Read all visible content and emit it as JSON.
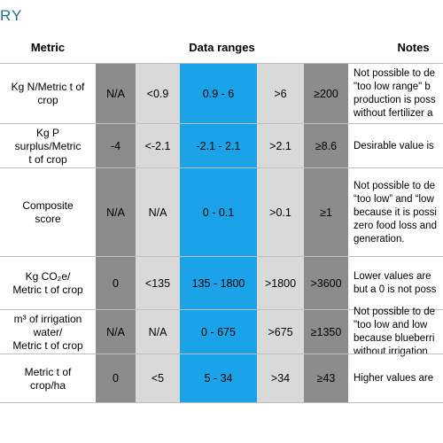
{
  "header": {
    "title": "RY",
    "columns": [
      "Metric",
      "Data ranges",
      "Notes"
    ]
  },
  "table": {
    "rows": [
      {
        "metric": [
          "Kg N/Metric t of",
          "crop"
        ],
        "ranges": [
          "N/A",
          "<0.9",
          "0.9 - 6",
          ">6",
          "≥200"
        ],
        "notes": [
          "Not possible to de",
          "\"too low range\" b",
          "production is poss",
          "without fertilizer a"
        ]
      },
      {
        "metric": [
          "Kg P",
          "surplus/Metric",
          "t of crop"
        ],
        "ranges": [
          "-4",
          "<-2.1",
          "-2.1 - 2.1",
          ">2.1",
          "≥8.6"
        ],
        "notes": [
          "Desirable value is"
        ]
      },
      {
        "metric": [
          "Composite",
          "score"
        ],
        "ranges": [
          "N/A",
          "N/A",
          "0 - 0.1",
          ">0.1",
          "≥1"
        ],
        "notes": [
          "Not possible to de",
          "“too low” and “low",
          "because it is possi",
          "zero food loss and",
          "generation."
        ]
      },
      {
        "metric": [
          "Kg CO₂e/",
          "Metric t of crop"
        ],
        "ranges": [
          "0",
          "<135",
          "135 - 1800",
          ">1800",
          ">3600"
        ],
        "notes": [
          "Lower values are",
          "but a 0 is not poss"
        ]
      },
      {
        "metric": [
          "m³ of irrigation",
          "water/",
          "Metric t of crop"
        ],
        "ranges": [
          "N/A",
          "N/A",
          "0 - 675",
          ">675",
          "≥1350"
        ],
        "notes": [
          "Not possible to de",
          "\"too low and low",
          "because blueberri",
          "without irrigation"
        ]
      },
      {
        "metric": [
          "Metric t of",
          "crop/ha"
        ],
        "ranges": [
          "0",
          "<5",
          "5 - 34",
          ">34",
          "≥43"
        ],
        "notes": [
          "Higher values are"
        ]
      }
    ]
  }
}
